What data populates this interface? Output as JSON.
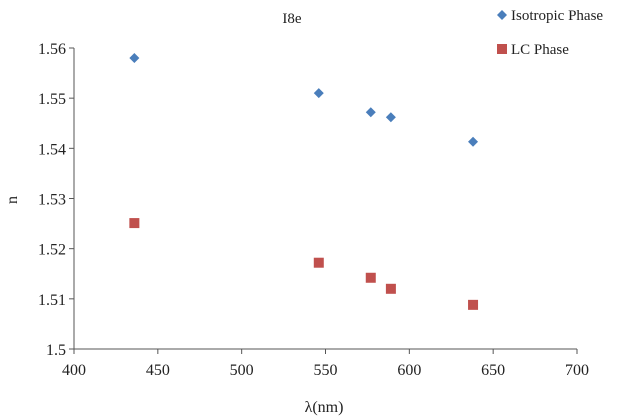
{
  "chart_data": {
    "type": "scatter",
    "title": "I8e",
    "xlabel": "λ(nm)",
    "ylabel": "n",
    "xlim": [
      400,
      700
    ],
    "ylim": [
      1.5,
      1.56
    ],
    "xticks": [
      "400",
      "450",
      "500",
      "550",
      "600",
      "650",
      "700"
    ],
    "yticks": [
      "1.5",
      "1.51",
      "1.52",
      "1.53",
      "1.54",
      "1.55",
      "1.56"
    ],
    "grid": false,
    "legend_position": "top-right",
    "series": [
      {
        "name": "Isotropic Phase",
        "marker": "diamond",
        "color": "#4a7ebb",
        "x": [
          436,
          546,
          577,
          589,
          638
        ],
        "y": [
          1.558,
          1.551,
          1.5472,
          1.5462,
          1.5413
        ]
      },
      {
        "name": "LC Phase",
        "marker": "square",
        "color": "#c0504d",
        "x": [
          436,
          546,
          577,
          589,
          638
        ],
        "y": [
          1.5251,
          1.5172,
          1.5142,
          1.512,
          1.5088
        ]
      }
    ]
  }
}
